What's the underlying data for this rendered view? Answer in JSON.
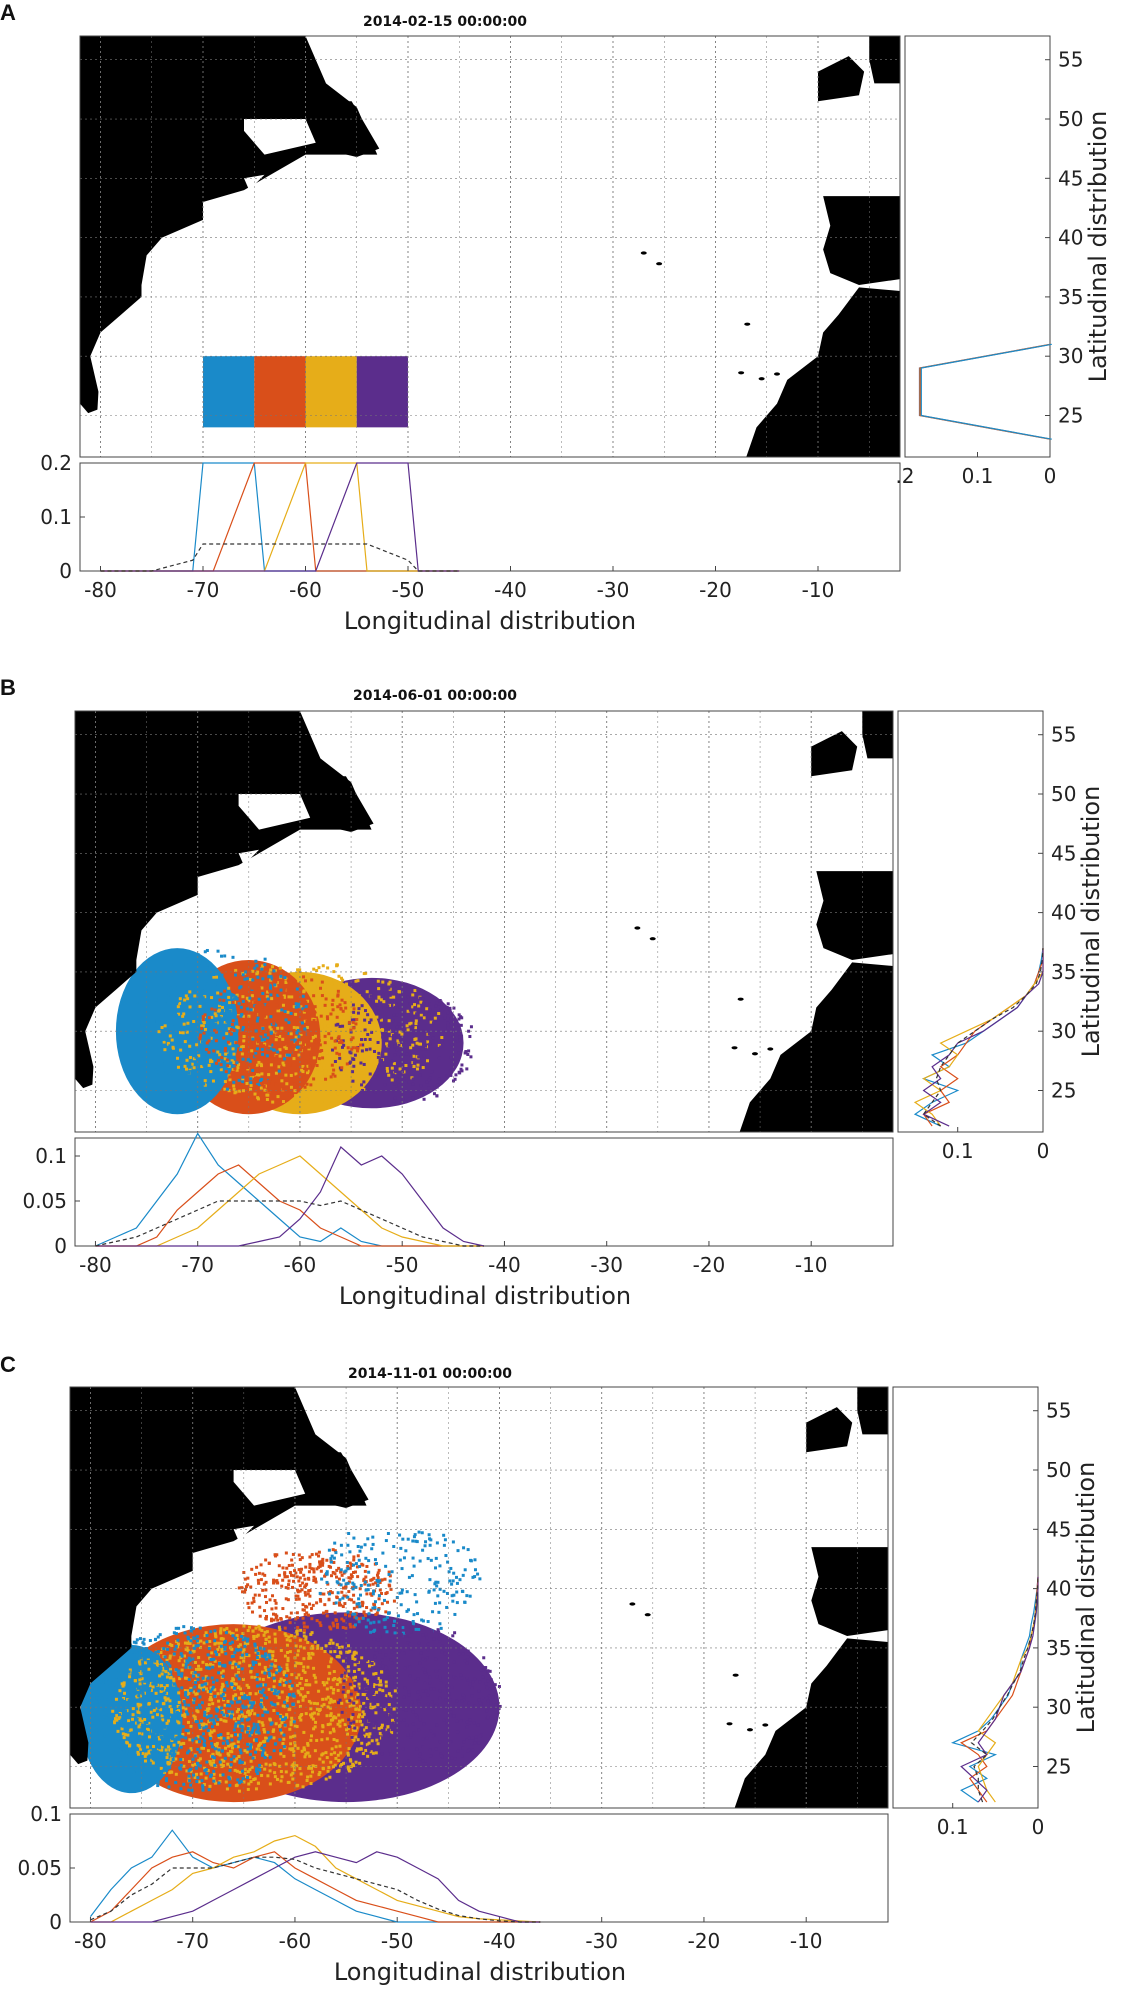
{
  "colors": {
    "blue": "#1a8ac9",
    "orange": "#d94f1a",
    "yellow": "#e6ad19",
    "purple": "#5b2d8c",
    "black_dash": "#333333",
    "land": "#000000",
    "grid": "#888888"
  },
  "panels": [
    {
      "letter": "A",
      "title": "2014-02-15 00:00:00",
      "xlabel": "Longitudinal distribution",
      "ylabel": "Latitudinal distribution",
      "xticks": [
        "-80",
        "-70",
        "-60",
        "-50",
        "-40",
        "-30",
        "-20",
        "-10"
      ],
      "yticks": [
        "25",
        "30",
        "35",
        "40",
        "45",
        "50",
        "55"
      ],
      "lon_yticks": [
        "0",
        "0.1",
        "0.2"
      ],
      "lat_xticks": [
        ".2",
        "0.1",
        "0"
      ]
    },
    {
      "letter": "B",
      "title": "2014-06-01 00:00:00",
      "xlabel": "Longitudinal distribution",
      "ylabel": "Latitudinal distribution",
      "xticks": [
        "-80",
        "-70",
        "-60",
        "-50",
        "-40",
        "-30",
        "-20",
        "-10"
      ],
      "yticks": [
        "25",
        "30",
        "35",
        "40",
        "45",
        "50",
        "55"
      ],
      "lon_yticks": [
        "0",
        "0.05",
        "0.1"
      ],
      "lat_xticks": [
        "0.1",
        "0"
      ]
    },
    {
      "letter": "C",
      "title": "2014-11-01 00:00:00",
      "xlabel": "Longitudinal distribution",
      "ylabel": "Latitudinal distribution",
      "xticks": [
        "-80",
        "-70",
        "-60",
        "-50",
        "-40",
        "-30",
        "-20",
        "-10"
      ],
      "yticks": [
        "25",
        "30",
        "35",
        "40",
        "45",
        "50",
        "55"
      ],
      "lon_yticks": [
        "0",
        "0.05",
        "0.1"
      ],
      "lat_xticks": [
        "0.1",
        "0"
      ]
    }
  ],
  "chart_data": [
    {
      "type": "line",
      "panel": "A",
      "x_axis": {
        "range": [
          -82,
          -2
        ]
      },
      "y_axis": {
        "range": [
          0,
          0.2
        ]
      },
      "x": [
        -80,
        -75,
        -71,
        -70,
        -69,
        -65,
        -64,
        -60,
        -59,
        -55,
        -54,
        -50,
        -49,
        -45
      ],
      "series": [
        {
          "color": "blue",
          "values": [
            0,
            0,
            0,
            0.2,
            0.2,
            0.2,
            0,
            0,
            0,
            0,
            0,
            0,
            0,
            0
          ]
        },
        {
          "color": "orange",
          "values": [
            0,
            0,
            0,
            0,
            0,
            0.2,
            0.2,
            0.2,
            0,
            0,
            0,
            0,
            0,
            0
          ]
        },
        {
          "color": "yellow",
          "values": [
            0,
            0,
            0,
            0,
            0,
            0,
            0,
            0.2,
            0.2,
            0.2,
            0,
            0,
            0,
            0
          ]
        },
        {
          "color": "purple",
          "values": [
            0,
            0,
            0,
            0,
            0,
            0,
            0,
            0,
            0,
            0.2,
            0.2,
            0.2,
            0,
            0
          ]
        },
        {
          "color": "black_dash",
          "values": [
            0,
            0,
            0.02,
            0.05,
            0.05,
            0.05,
            0.05,
            0.05,
            0.05,
            0.05,
            0.05,
            0.02,
            0,
            0
          ]
        }
      ],
      "lat_profile": {
        "y_axis": {
          "range": [
            21.5,
            57
          ]
        },
        "x_axis": {
          "range": [
            0,
            0.2
          ]
        },
        "lat": [
          23,
          25,
          29,
          31
        ],
        "values": [
          0,
          0.18,
          0.18,
          0
        ]
      },
      "release_boxes": {
        "lon_edges": [
          -70,
          -65,
          -60,
          -55,
          -50
        ],
        "lat_range": [
          24,
          30
        ]
      }
    },
    {
      "type": "line",
      "panel": "B",
      "x_axis": {
        "range": [
          -82,
          -2
        ]
      },
      "y_axis": {
        "range": [
          0,
          0.12
        ]
      },
      "x": [
        -80,
        -78,
        -76,
        -74,
        -72,
        -70,
        -68,
        -66,
        -64,
        -62,
        -60,
        -58,
        -56,
        -54,
        -52,
        -50,
        -48,
        -46,
        -44,
        -42
      ],
      "series": [
        {
          "color": "blue",
          "values": [
            0,
            0.01,
            0.02,
            0.05,
            0.08,
            0.125,
            0.09,
            0.07,
            0.05,
            0.03,
            0.01,
            0.005,
            0.02,
            0.005,
            0,
            0,
            0,
            0,
            0,
            0
          ]
        },
        {
          "color": "orange",
          "values": [
            0,
            0,
            0,
            0.01,
            0.04,
            0.06,
            0.08,
            0.09,
            0.07,
            0.05,
            0.04,
            0.02,
            0.01,
            0,
            0,
            0,
            0,
            0,
            0,
            0
          ]
        },
        {
          "color": "yellow",
          "values": [
            0,
            0,
            0,
            0,
            0.01,
            0.02,
            0.04,
            0.06,
            0.08,
            0.09,
            0.1,
            0.08,
            0.06,
            0.04,
            0.02,
            0.01,
            0.005,
            0,
            0,
            0
          ]
        },
        {
          "color": "purple",
          "values": [
            0,
            0,
            0,
            0,
            0,
            0,
            0,
            0,
            0.005,
            0.01,
            0.03,
            0.06,
            0.11,
            0.09,
            0.1,
            0.08,
            0.05,
            0.02,
            0.005,
            0
          ]
        },
        {
          "color": "black_dash",
          "values": [
            0,
            0.005,
            0.01,
            0.02,
            0.03,
            0.04,
            0.05,
            0.05,
            0.05,
            0.05,
            0.05,
            0.045,
            0.05,
            0.04,
            0.03,
            0.02,
            0.01,
            0.005,
            0,
            0
          ]
        }
      ],
      "lat_profile": {
        "y_axis": {
          "range": [
            21.5,
            57
          ]
        },
        "x_axis": {
          "range": [
            0,
            0.17
          ]
        },
        "lat": [
          22,
          23,
          24,
          25,
          26,
          27,
          28,
          29,
          30,
          31,
          32,
          33,
          34,
          35,
          36,
          37
        ],
        "series": [
          {
            "color": "blue",
            "values": [
              0.12,
              0.15,
              0.13,
              0.1,
              0.14,
              0.11,
              0.13,
              0.09,
              0.07,
              0.05,
              0.03,
              0.02,
              0.01,
              0.005,
              0.002,
              0
            ]
          },
          {
            "color": "orange",
            "values": [
              0.13,
              0.14,
              0.11,
              0.12,
              0.1,
              0.12,
              0.1,
              0.09,
              0.08,
              0.06,
              0.04,
              0.02,
              0.01,
              0.005,
              0,
              0
            ]
          },
          {
            "color": "yellow",
            "values": [
              0.12,
              0.13,
              0.15,
              0.12,
              0.14,
              0.11,
              0.1,
              0.12,
              0.09,
              0.06,
              0.04,
              0.02,
              0.01,
              0,
              0,
              0
            ]
          },
          {
            "color": "purple",
            "values": [
              0.11,
              0.14,
              0.12,
              0.14,
              0.12,
              0.13,
              0.11,
              0.1,
              0.07,
              0.05,
              0.03,
              0.02,
              0.005,
              0,
              0,
              0
            ]
          },
          {
            "color": "black_dash",
            "values": [
              0.12,
              0.14,
              0.13,
              0.12,
              0.125,
              0.12,
              0.11,
              0.1,
              0.08,
              0.06,
              0.035,
              0.02,
              0.008,
              0.003,
              0.001,
              0
            ]
          }
        ]
      }
    },
    {
      "type": "line",
      "panel": "C",
      "x_axis": {
        "range": [
          -82,
          -2
        ]
      },
      "y_axis": {
        "range": [
          0,
          0.1
        ]
      },
      "x": [
        -80,
        -78,
        -76,
        -74,
        -72,
        -70,
        -68,
        -66,
        -64,
        -62,
        -60,
        -58,
        -56,
        -54,
        -52,
        -50,
        -48,
        -46,
        -44,
        -42,
        -40,
        -38,
        -36
      ],
      "series": [
        {
          "color": "blue",
          "values": [
            0.005,
            0.03,
            0.05,
            0.06,
            0.085,
            0.06,
            0.05,
            0.055,
            0.06,
            0.055,
            0.04,
            0.03,
            0.02,
            0.01,
            0.005,
            0,
            0,
            0,
            0,
            0,
            0,
            0,
            0
          ]
        },
        {
          "color": "orange",
          "values": [
            0,
            0.01,
            0.03,
            0.05,
            0.06,
            0.065,
            0.055,
            0.05,
            0.06,
            0.065,
            0.05,
            0.04,
            0.03,
            0.02,
            0.015,
            0.01,
            0.005,
            0,
            0,
            0,
            0,
            0,
            0
          ]
        },
        {
          "color": "yellow",
          "values": [
            0,
            0,
            0.01,
            0.02,
            0.03,
            0.045,
            0.05,
            0.06,
            0.065,
            0.075,
            0.08,
            0.07,
            0.05,
            0.04,
            0.03,
            0.02,
            0.015,
            0.01,
            0.005,
            0.003,
            0.002,
            0.001,
            0
          ]
        },
        {
          "color": "purple",
          "values": [
            0,
            0,
            0,
            0,
            0.005,
            0.01,
            0.02,
            0.03,
            0.04,
            0.05,
            0.06,
            0.065,
            0.06,
            0.055,
            0.065,
            0.06,
            0.05,
            0.04,
            0.02,
            0.01,
            0.005,
            0,
            0
          ]
        },
        {
          "color": "black_dash",
          "values": [
            0.002,
            0.01,
            0.025,
            0.035,
            0.05,
            0.05,
            0.05,
            0.055,
            0.06,
            0.06,
            0.058,
            0.05,
            0.045,
            0.04,
            0.035,
            0.03,
            0.02,
            0.012,
            0.006,
            0.003,
            0.001,
            0,
            0
          ]
        }
      ],
      "lat_profile": {
        "y_axis": {
          "range": [
            21.5,
            57
          ]
        },
        "x_axis": {
          "range": [
            0,
            0.17
          ]
        },
        "lat": [
          22,
          23,
          24,
          25,
          26,
          27,
          28,
          29,
          30,
          31,
          32,
          33,
          34,
          35,
          36,
          37,
          38,
          39,
          40,
          41
        ],
        "series": [
          {
            "color": "blue",
            "values": [
              0.07,
              0.09,
              0.06,
              0.08,
              0.05,
              0.1,
              0.07,
              0.055,
              0.045,
              0.035,
              0.03,
              0.02,
              0.02,
              0.015,
              0.01,
              0.008,
              0.005,
              0.003,
              0.001,
              0
            ]
          },
          {
            "color": "orange",
            "values": [
              0.06,
              0.07,
              0.08,
              0.06,
              0.07,
              0.09,
              0.06,
              0.05,
              0.04,
              0.03,
              0.025,
              0.02,
              0.015,
              0.01,
              0.008,
              0.005,
              0.003,
              0.002,
              0.001,
              0
            ]
          },
          {
            "color": "yellow",
            "values": [
              0.05,
              0.06,
              0.065,
              0.07,
              0.06,
              0.05,
              0.07,
              0.06,
              0.05,
              0.04,
              0.03,
              0.025,
              0.02,
              0.012,
              0.008,
              0.005,
              0.003,
              0.002,
              0,
              0
            ]
          },
          {
            "color": "purple",
            "values": [
              0.07,
              0.06,
              0.075,
              0.09,
              0.06,
              0.07,
              0.06,
              0.05,
              0.045,
              0.04,
              0.03,
              0.02,
              0.015,
              0.01,
              0.006,
              0.004,
              0.002,
              0.001,
              0,
              0
            ]
          },
          {
            "color": "black_dash",
            "values": [
              0.065,
              0.07,
              0.07,
              0.075,
              0.06,
              0.078,
              0.065,
              0.053,
              0.045,
              0.036,
              0.029,
              0.021,
              0.017,
              0.012,
              0.008,
              0.005,
              0.003,
              0.002,
              0.0005,
              0
            ]
          }
        ]
      }
    }
  ]
}
